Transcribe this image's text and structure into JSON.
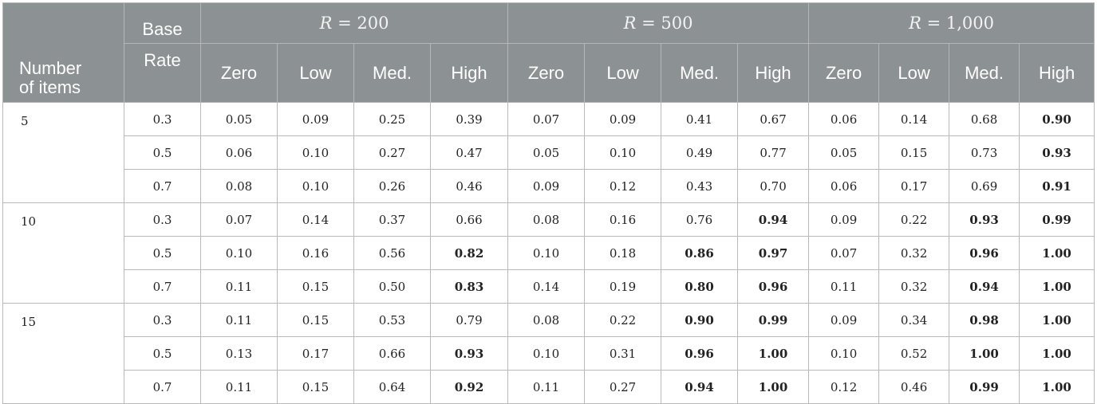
{
  "header": {
    "number_of_items_line1": "Number",
    "number_of_items_line2": "of items",
    "base_line1": "Base",
    "base_line2": "Rate",
    "groups": [
      {
        "var": "R",
        "rest": " = 200"
      },
      {
        "var": "R",
        "rest": " = 500"
      },
      {
        "var": "R",
        "rest": " = 1,000"
      }
    ],
    "subheaders": [
      "Zero",
      "Low",
      "Med.",
      "High"
    ]
  },
  "rows": [
    {
      "items": "5",
      "base": "0.3",
      "values": [
        "0.05",
        "0.09",
        "0.25",
        "0.39",
        "0.07",
        "0.09",
        "0.41",
        "0.67",
        "0.06",
        "0.14",
        "0.68",
        "0.90"
      ],
      "bold": [
        11
      ]
    },
    {
      "items": "",
      "base": "0.5",
      "values": [
        "0.06",
        "0.10",
        "0.27",
        "0.47",
        "0.05",
        "0.10",
        "0.49",
        "0.77",
        "0.05",
        "0.15",
        "0.73",
        "0.93"
      ],
      "bold": [
        11
      ]
    },
    {
      "items": "",
      "base": "0.7",
      "values": [
        "0.08",
        "0.10",
        "0.26",
        "0.46",
        "0.09",
        "0.12",
        "0.43",
        "0.70",
        "0.06",
        "0.17",
        "0.69",
        "0.91"
      ],
      "bold": [
        11
      ]
    },
    {
      "items": "10",
      "base": "0.3",
      "values": [
        "0.07",
        "0.14",
        "0.37",
        "0.66",
        "0.08",
        "0.16",
        "0.76",
        "0.94",
        "0.09",
        "0.22",
        "0.93",
        "0.99"
      ],
      "bold": [
        7,
        10,
        11
      ]
    },
    {
      "items": "",
      "base": "0.5",
      "values": [
        "0.10",
        "0.16",
        "0.56",
        "0.82",
        "0.10",
        "0.18",
        "0.86",
        "0.97",
        "0.07",
        "0.32",
        "0.96",
        "1.00"
      ],
      "bold": [
        3,
        6,
        7,
        10,
        11
      ]
    },
    {
      "items": "",
      "base": "0.7",
      "values": [
        "0.11",
        "0.15",
        "0.50",
        "0.83",
        "0.14",
        "0.19",
        "0.80",
        "0.96",
        "0.11",
        "0.32",
        "0.94",
        "1.00"
      ],
      "bold": [
        3,
        6,
        7,
        10,
        11
      ]
    },
    {
      "items": "15",
      "base": "0.3",
      "values": [
        "0.11",
        "0.15",
        "0.53",
        "0.79",
        "0.08",
        "0.22",
        "0.90",
        "0.99",
        "0.09",
        "0.34",
        "0.98",
        "1.00"
      ],
      "bold": [
        6,
        7,
        10,
        11
      ]
    },
    {
      "items": "",
      "base": "0.5",
      "values": [
        "0.13",
        "0.17",
        "0.66",
        "0.93",
        "0.10",
        "0.31",
        "0.96",
        "1.00",
        "0.10",
        "0.52",
        "1.00",
        "1.00"
      ],
      "bold": [
        3,
        6,
        7,
        10,
        11
      ]
    },
    {
      "items": "",
      "base": "0.7",
      "values": [
        "0.11",
        "0.15",
        "0.64",
        "0.92",
        "0.11",
        "0.27",
        "0.94",
        "1.00",
        "0.12",
        "0.46",
        "0.99",
        "1.00"
      ],
      "bold": [
        3,
        6,
        7,
        10,
        11
      ]
    }
  ]
}
